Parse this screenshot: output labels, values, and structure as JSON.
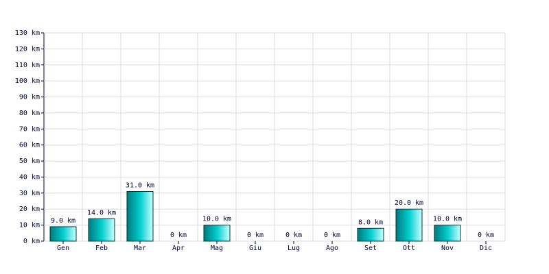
{
  "chart_data": {
    "type": "bar",
    "categories": [
      "Gen",
      "Feb",
      "Mar",
      "Apr",
      "Mag",
      "Giu",
      "Lug",
      "Ago",
      "Set",
      "Ott",
      "Nov",
      "Dic"
    ],
    "values": [
      9,
      14,
      31,
      0,
      10,
      0,
      0,
      0,
      8,
      20,
      10,
      0
    ],
    "value_labels": [
      "9.0 km",
      "14.0 km",
      "31.0 km",
      "0 km",
      "10.0 km",
      "0 km",
      "0 km",
      "0 km",
      "8.0 km",
      "20.0 km",
      "10.0 km",
      "0 km"
    ],
    "color": "#00cccc",
    "ylim": [
      0,
      130
    ],
    "yticks": [
      {
        "value": 0,
        "label": "0 km"
      },
      {
        "value": 10,
        "label": "10 km"
      },
      {
        "value": 20,
        "label": "20 km"
      },
      {
        "value": 30,
        "label": "30 km"
      },
      {
        "value": 40,
        "label": "40 km"
      },
      {
        "value": 50,
        "label": "50 km"
      },
      {
        "value": 60,
        "label": "60 km"
      },
      {
        "value": 70,
        "label": "70 km"
      },
      {
        "value": 80,
        "label": "80 km"
      },
      {
        "value": 90,
        "label": "90 km"
      },
      {
        "value": 100,
        "label": "100 km"
      },
      {
        "value": 110,
        "label": "110 km"
      },
      {
        "value": 120,
        "label": "120 km"
      },
      {
        "value": 130,
        "label": "130 km"
      }
    ],
    "grid": true
  }
}
